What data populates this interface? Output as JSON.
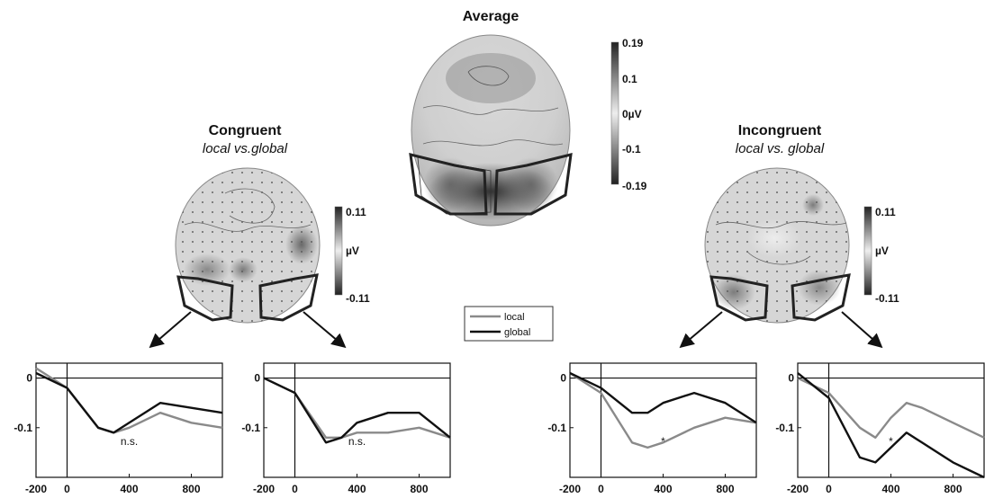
{
  "figure": {
    "average": {
      "title": "Average",
      "colorbar": {
        "max": "0.19",
        "upper": "0.1",
        "zero": "0µV",
        "lower": "-0.1",
        "min": "-0.19"
      }
    },
    "congruent": {
      "title": "Congruent",
      "subtitle": "local vs.global",
      "colorbar": {
        "max": "0.11",
        "unit": "µV",
        "min": "-0.11"
      }
    },
    "incongruent": {
      "title": "Incongruent",
      "subtitle": "local vs. global",
      "colorbar": {
        "max": "0.11",
        "unit": "µV",
        "min": "-0.11"
      }
    },
    "legend": {
      "items": [
        "local",
        "global"
      ]
    },
    "colors": {
      "local": "#8a8a8a",
      "global": "#111111"
    }
  },
  "chart_data": [
    {
      "type": "line",
      "x": [
        -200,
        0,
        200,
        300,
        400,
        600,
        800,
        1000
      ],
      "series": [
        {
          "name": "local",
          "values": [
            0.02,
            -0.02,
            -0.1,
            -0.11,
            -0.1,
            -0.07,
            -0.09,
            -0.1
          ]
        },
        {
          "name": "global",
          "values": [
            0.01,
            -0.02,
            -0.1,
            -0.11,
            -0.09,
            -0.05,
            -0.06,
            -0.07
          ]
        }
      ],
      "annotation": "n.s.",
      "xticks": [
        "-200",
        "0",
        "400",
        "800"
      ],
      "yticks": [
        "0",
        "-0.1"
      ],
      "xlim": [
        -200,
        1000
      ],
      "ylim": [
        -0.2,
        0.03
      ]
    },
    {
      "type": "line",
      "x": [
        -200,
        0,
        200,
        300,
        400,
        600,
        800,
        1000
      ],
      "series": [
        {
          "name": "local",
          "values": [
            0.0,
            -0.03,
            -0.12,
            -0.12,
            -0.11,
            -0.11,
            -0.1,
            -0.12
          ]
        },
        {
          "name": "global",
          "values": [
            0.0,
            -0.03,
            -0.13,
            -0.12,
            -0.09,
            -0.07,
            -0.07,
            -0.12
          ]
        }
      ],
      "annotation": "n.s.",
      "xticks": [
        "-200",
        "0",
        "400",
        "800"
      ],
      "yticks": [
        "0",
        "-0.1"
      ],
      "xlim": [
        -200,
        1000
      ],
      "ylim": [
        -0.2,
        0.03
      ]
    },
    {
      "type": "line",
      "x": [
        -200,
        0,
        200,
        300,
        400,
        600,
        800,
        1000
      ],
      "series": [
        {
          "name": "local",
          "values": [
            0.01,
            -0.03,
            -0.13,
            -0.14,
            -0.13,
            -0.1,
            -0.08,
            -0.09
          ]
        },
        {
          "name": "global",
          "values": [
            0.01,
            -0.02,
            -0.07,
            -0.07,
            -0.05,
            -0.03,
            -0.05,
            -0.09
          ]
        }
      ],
      "annotation": "*",
      "xticks": [
        "-200",
        "0",
        "400",
        "800"
      ],
      "yticks": [
        "0",
        "-0.1"
      ],
      "xlim": [
        -200,
        1000
      ],
      "ylim": [
        -0.2,
        0.03
      ]
    },
    {
      "type": "line",
      "x": [
        -200,
        0,
        200,
        300,
        400,
        500,
        600,
        800,
        1000
      ],
      "series": [
        {
          "name": "local",
          "values": [
            0.0,
            -0.03,
            -0.1,
            -0.12,
            -0.08,
            -0.05,
            -0.06,
            -0.09,
            -0.12
          ]
        },
        {
          "name": "global",
          "values": [
            0.01,
            -0.04,
            -0.16,
            -0.17,
            -0.14,
            -0.11,
            -0.13,
            -0.17,
            -0.2
          ]
        }
      ],
      "annotation": "*",
      "xticks": [
        "-200",
        "0",
        "400",
        "800"
      ],
      "yticks": [
        "0",
        "-0.1"
      ],
      "xlim": [
        -200,
        1000
      ],
      "ylim": [
        -0.2,
        0.03
      ]
    }
  ]
}
